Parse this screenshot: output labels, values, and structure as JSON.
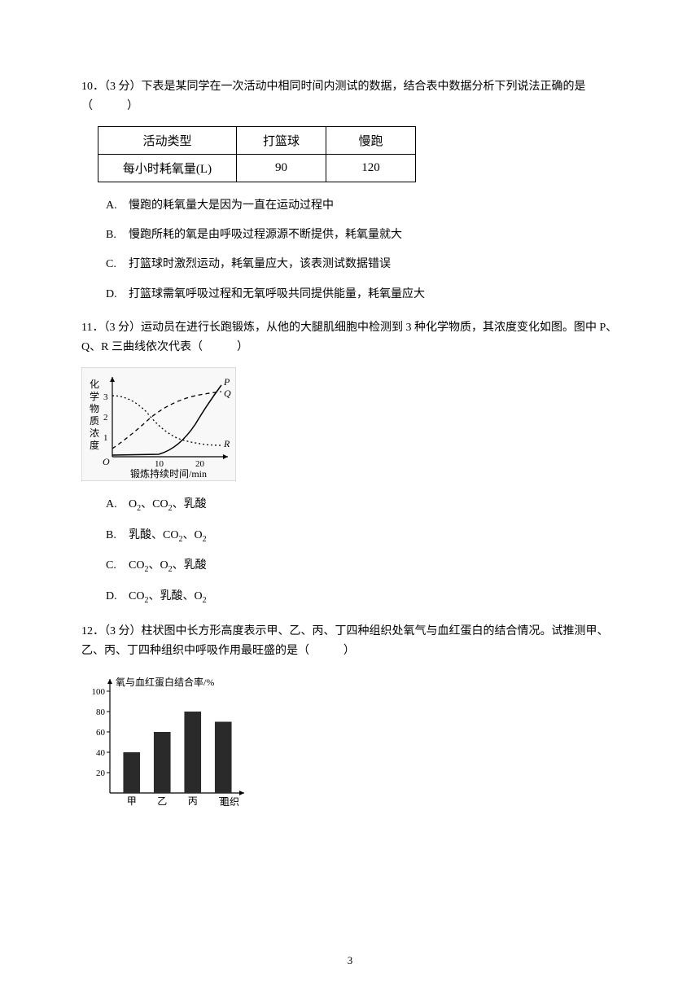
{
  "q10": {
    "number": "10．",
    "points": "（3 分）",
    "stem": "下表是某同学在一次活动中相同时间内测试的数据，结合表中数据分析下列说法正确的是（　　　）",
    "table": {
      "header": [
        "活动类型",
        "打篮球",
        "慢跑"
      ],
      "row": [
        "每小时耗氧量(L)",
        "90",
        "120"
      ]
    },
    "options": {
      "A": "慢跑的耗氧量大是因为一直在运动过程中",
      "B": "慢跑所耗的氧是由呼吸过程源源不断提供，耗氧量就大",
      "C": "打篮球时激烈运动，耗氧量应大，该表测试数据错误",
      "D": "打篮球需氧呼吸过程和无氧呼吸共同提供能量，耗氧量应大"
    }
  },
  "q11": {
    "number": "11．",
    "points": "（3 分）",
    "stem": "运动员在进行长跑锻炼，从他的大腿肌细胞中检测到 3 种化学物质，其浓度变化如图。图中 P、Q、R 三曲线依次代表（　　　）",
    "chart": {
      "ylabel": "化学物质浓度",
      "xlabel": "锻炼持续时间/min",
      "xticks": [
        "10",
        "20"
      ],
      "yticks": [
        "1",
        "2",
        "3"
      ],
      "series": [
        "P",
        "Q",
        "R"
      ],
      "line_color": "#000000",
      "bg": "#f5f5f5"
    },
    "options": {
      "A": "O₂、CO₂、乳酸",
      "B": "乳酸、CO₂、O₂",
      "C": "CO₂、O₂、乳酸",
      "D": "CO₂、乳酸、O₂"
    }
  },
  "q12": {
    "number": "12．",
    "points": "（3 分）",
    "stem": "柱状图中长方形高度表示甲、乙、丙、丁四种组织处氧气与血红蛋白的结合情况。试推测甲、乙、丙、丁四种组织中呼吸作用最旺盛的是（　　　）",
    "chart": {
      "ylabel": "氧与血红蛋白结合率/%",
      "xlabel": "组织",
      "categories": [
        "甲",
        "乙",
        "丙",
        "丁"
      ],
      "values": [
        40,
        60,
        80,
        70
      ],
      "ylim": [
        0,
        100
      ],
      "ytick_step": 20,
      "bar_color": "#2a2a2a",
      "bar_width": 0.55,
      "bg": "#ffffff"
    }
  },
  "labels": {
    "A": "A.",
    "B": "B.",
    "C": "C.",
    "D": "D."
  },
  "page": "3"
}
